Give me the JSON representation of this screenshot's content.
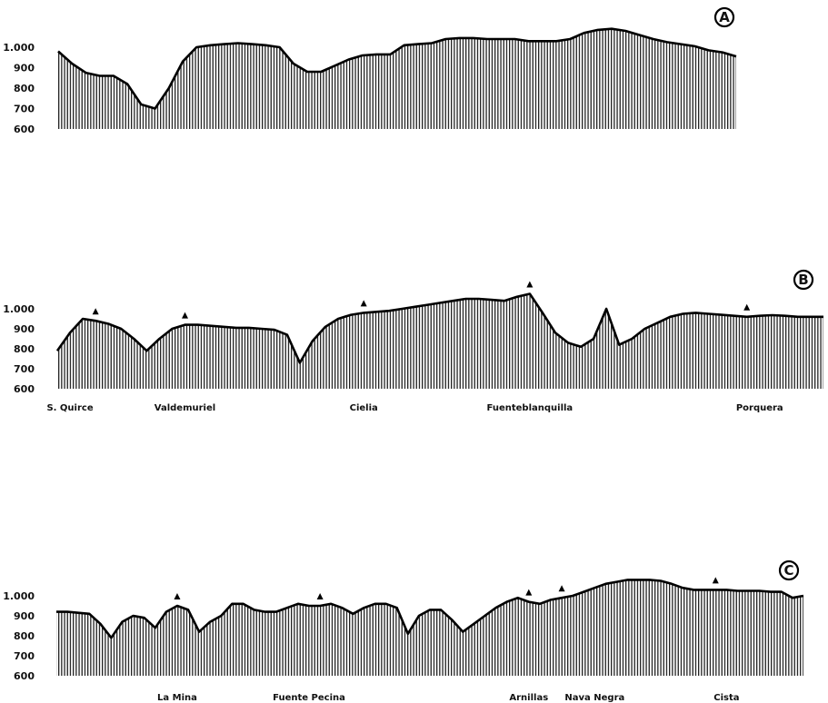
{
  "chart_data": [
    {
      "type": "area",
      "badge": "A",
      "yticks": [
        "1.000",
        "900",
        "800",
        "700",
        "600"
      ],
      "ylim": [
        600,
        1000
      ],
      "x": [
        0,
        1,
        2,
        3,
        4,
        5,
        6,
        7,
        8,
        9,
        10,
        11,
        12,
        13,
        14,
        15,
        16,
        17,
        18,
        19,
        20,
        21,
        22,
        23,
        24,
        25,
        26,
        27,
        28,
        29,
        30,
        31,
        32,
        33,
        34,
        35,
        36,
        37,
        38,
        39,
        40,
        41,
        42,
        43,
        44,
        45,
        46,
        47,
        48,
        49
      ],
      "values": [
        980,
        920,
        875,
        860,
        860,
        820,
        720,
        700,
        800,
        930,
        1000,
        1010,
        1015,
        1020,
        1015,
        1010,
        1000,
        920,
        880,
        880,
        910,
        940,
        960,
        965,
        965,
        1010,
        1015,
        1020,
        1040,
        1045,
        1045,
        1040,
        1040,
        1040,
        1030,
        1030,
        1030,
        1040,
        1070,
        1085,
        1090,
        1080,
        1060,
        1040,
        1025,
        1015,
        1005,
        985,
        975,
        955
      ],
      "labels": []
    },
    {
      "type": "area",
      "badge": "B",
      "yticks": [
        "1.000",
        "900",
        "800",
        "700",
        "600"
      ],
      "ylim": [
        600,
        1000
      ],
      "x": [
        0,
        1,
        2,
        3,
        4,
        5,
        6,
        7,
        8,
        9,
        10,
        11,
        12,
        13,
        14,
        15,
        16,
        17,
        18,
        19,
        20,
        21,
        22,
        23,
        24,
        25,
        26,
        27,
        28,
        29,
        30,
        31,
        32,
        33,
        34,
        35,
        36,
        37,
        38,
        39,
        40,
        41,
        42,
        43,
        44,
        45,
        46,
        47,
        48,
        49,
        50,
        51,
        52,
        53,
        54,
        55,
        56,
        57,
        58,
        59,
        60
      ],
      "values": [
        790,
        880,
        950,
        940,
        925,
        900,
        850,
        790,
        850,
        900,
        920,
        920,
        915,
        910,
        905,
        905,
        900,
        895,
        870,
        730,
        840,
        910,
        950,
        970,
        980,
        985,
        990,
        1000,
        1010,
        1020,
        1030,
        1040,
        1050,
        1050,
        1045,
        1040,
        1060,
        1075,
        980,
        880,
        830,
        810,
        850,
        1000,
        820,
        850,
        900,
        930,
        960,
        975,
        980,
        975,
        970,
        965,
        960,
        965,
        968,
        965,
        960,
        960,
        960
      ],
      "markers": [
        3,
        10,
        24,
        37,
        54
      ],
      "labels": [
        {
          "x": 1,
          "text": "S. Quirce"
        },
        {
          "x": 10,
          "text": "Valdemuriel"
        },
        {
          "x": 24,
          "text": "Cielia"
        },
        {
          "x": 37,
          "text": "Fuenteblanquilla"
        },
        {
          "x": 55,
          "text": "Porquera"
        }
      ]
    },
    {
      "type": "area",
      "badge": "C",
      "yticks": [
        "1.000",
        "900",
        "800",
        "700",
        "600"
      ],
      "ylim": [
        600,
        1000
      ],
      "x": [
        0,
        1,
        2,
        3,
        4,
        5,
        6,
        7,
        8,
        9,
        10,
        11,
        12,
        13,
        14,
        15,
        16,
        17,
        18,
        19,
        20,
        21,
        22,
        23,
        24,
        25,
        26,
        27,
        28,
        29,
        30,
        31,
        32,
        33,
        34,
        35,
        36,
        37,
        38,
        39,
        40,
        41,
        42,
        43,
        44,
        45,
        46,
        47,
        48,
        49,
        50,
        51,
        52,
        53,
        54,
        55,
        56,
        57,
        58,
        59,
        60,
        61,
        62,
        63,
        64,
        65,
        66,
        67,
        68
      ],
      "values": [
        920,
        920,
        915,
        910,
        860,
        790,
        870,
        900,
        890,
        840,
        920,
        950,
        930,
        820,
        870,
        900,
        960,
        960,
        930,
        920,
        920,
        940,
        960,
        950,
        950,
        960,
        940,
        910,
        940,
        960,
        960,
        940,
        810,
        900,
        930,
        930,
        880,
        820,
        860,
        900,
        940,
        970,
        990,
        970,
        960,
        980,
        990,
        1000,
        1020,
        1040,
        1060,
        1070,
        1080,
        1080,
        1080,
        1075,
        1060,
        1040,
        1030,
        1030,
        1030,
        1030,
        1025,
        1025,
        1025,
        1020,
        1020,
        990,
        1000
      ],
      "markers": [
        11,
        24,
        43,
        46,
        60
      ],
      "labels": [
        {
          "x": 11,
          "text": "La Mina"
        },
        {
          "x": 23,
          "text": "Fuente Pecina"
        },
        {
          "x": 43,
          "text": "Arnillas"
        },
        {
          "x": 49,
          "text": "Nava Negra"
        },
        {
          "x": 61,
          "text": "Cista"
        }
      ]
    }
  ]
}
